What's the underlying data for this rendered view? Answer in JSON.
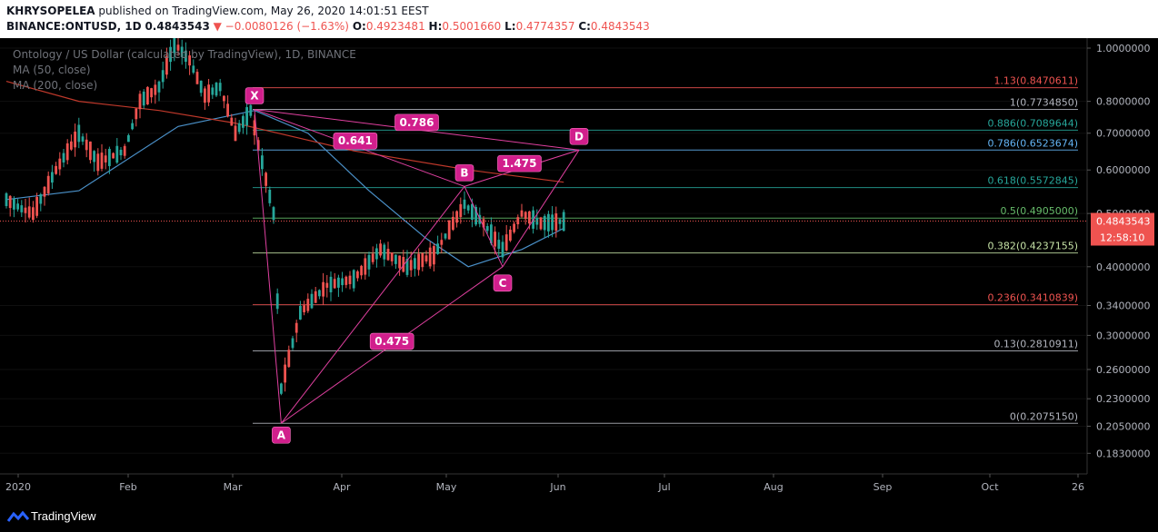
{
  "header": {
    "author": "KHRYSOPELEA",
    "published_text": "published on TradingView.com, May 26, 2020 14:01:51 EEST",
    "symbol": "BINANCE:ONTUSD, 1D",
    "last": "0.4843543",
    "change": "▼ −0.0080126 (−1.63%)",
    "o_label": "O:",
    "o_val": "0.4923481",
    "h_label": "H:",
    "h_val": "0.5001660",
    "l_label": "L:",
    "l_val": "0.4774357",
    "c_label": "C:",
    "c_val": "0.4843543"
  },
  "legend": {
    "title": "Ontology / US Dollar (calculated by TradingView), 1D, BINANCE",
    "ma50": "MA (50, close)",
    "ma200": "MA (200, close)"
  },
  "footer": {
    "brand": "TradingView"
  },
  "chart_data": {
    "type": "candlestick",
    "price_axis": {
      "scale": "log",
      "ticks": [
        "1.0000000",
        "0.8000000",
        "0.7000000",
        "0.6000000",
        "0.5000000",
        "0.4000000",
        "0.3400000",
        "0.3000000",
        "0.2600000",
        "0.2300000",
        "0.2050000",
        "0.1830000"
      ],
      "last_price_label": "0.4843543",
      "countdown_label": "12:58:10",
      "last_price": 0.4843543
    },
    "time_axis": {
      "labels": [
        "2020",
        "Feb",
        "Mar",
        "Apr",
        "May",
        "Jun",
        "Jul",
        "Aug",
        "Sep",
        "Oct",
        "26"
      ]
    },
    "fibonacci": [
      {
        "label": "1.13(0.8470611)",
        "price": 0.8470611,
        "color": "#ef5350"
      },
      {
        "label": "1(0.7734850)",
        "price": 0.773485,
        "color": "#b2b5be"
      },
      {
        "label": "0.886(0.7089644)",
        "price": 0.7089644,
        "color": "#26a69a"
      },
      {
        "label": "0.786(0.6523674)",
        "price": 0.6523674,
        "color": "#64b5f6"
      },
      {
        "label": "0.618(0.5572845)",
        "price": 0.5572845,
        "color": "#26a69a"
      },
      {
        "label": "0.5(0.4905000)",
        "price": 0.4905,
        "color": "#66bb6a"
      },
      {
        "label": "0.382(0.4237155)",
        "price": 0.4237155,
        "color": "#c5e1a5"
      },
      {
        "label": "0.236(0.3410839)",
        "price": 0.3410839,
        "color": "#ef5350"
      },
      {
        "label": "0.13(0.2810911)",
        "price": 0.2810911,
        "color": "#b2b5be"
      },
      {
        "label": "0(0.2075150)",
        "price": 0.207515,
        "color": "#b2b5be"
      }
    ],
    "harmonic_points": [
      {
        "label": "X",
        "date": "2020-03-06",
        "price": 0.773485
      },
      {
        "label": "A",
        "date": "2020-03-13",
        "price": 0.207515
      },
      {
        "label": "B",
        "date": "2020-04-30",
        "price": 0.56
      },
      {
        "label": "C",
        "date": "2020-05-10",
        "price": 0.4
      },
      {
        "label": "D",
        "date": "2020-05-30",
        "price": 0.6523674
      }
    ],
    "ratios": [
      "0.786",
      "0.641",
      "1.475",
      "0.475"
    ],
    "moving_averages": [
      {
        "name": "MA (50, close)",
        "color": "#4a90c8",
        "points": [
          [
            "2020-01-01",
            0.53
          ],
          [
            "2020-01-20",
            0.55
          ],
          [
            "2020-02-15",
            0.72
          ],
          [
            "2020-03-06",
            0.77
          ],
          [
            "2020-03-20",
            0.7
          ],
          [
            "2020-04-05",
            0.55
          ],
          [
            "2020-04-20",
            0.45
          ],
          [
            "2020-05-01",
            0.4
          ],
          [
            "2020-05-15",
            0.43
          ],
          [
            "2020-05-26",
            0.47
          ]
        ]
      },
      {
        "name": "MA (200, close)",
        "color": "#c0392b",
        "points": [
          [
            "2020-01-01",
            0.87
          ],
          [
            "2020-01-20",
            0.8
          ],
          [
            "2020-02-10",
            0.77
          ],
          [
            "2020-03-01",
            0.73
          ],
          [
            "2020-04-01",
            0.65
          ],
          [
            "2020-05-01",
            0.6
          ],
          [
            "2020-05-26",
            0.57
          ]
        ]
      }
    ],
    "candle_count": 147,
    "candle_path": [
      [
        "2020-01-01",
        0.53
      ],
      [
        "2020-01-05",
        0.51
      ],
      [
        "2020-01-08",
        0.5
      ],
      [
        "2020-01-14",
        0.6
      ],
      [
        "2020-01-20",
        0.7
      ],
      [
        "2020-01-25",
        0.62
      ],
      [
        "2020-02-01",
        0.65
      ],
      [
        "2020-02-05",
        0.8
      ],
      [
        "2020-02-10",
        0.85
      ],
      [
        "2020-02-14",
        1.02
      ],
      [
        "2020-02-18",
        0.95
      ],
      [
        "2020-02-22",
        0.82
      ],
      [
        "2020-02-26",
        0.85
      ],
      [
        "2020-03-01",
        0.7
      ],
      [
        "2020-03-05",
        0.77
      ],
      [
        "2020-03-08",
        0.62
      ],
      [
        "2020-03-11",
        0.5
      ],
      [
        "2020-03-13",
        0.24
      ],
      [
        "2020-03-18",
        0.33
      ],
      [
        "2020-03-25",
        0.37
      ],
      [
        "2020-04-01",
        0.38
      ],
      [
        "2020-04-08",
        0.43
      ],
      [
        "2020-04-15",
        0.4
      ],
      [
        "2020-04-22",
        0.42
      ],
      [
        "2020-04-30",
        0.52
      ],
      [
        "2020-05-05",
        0.48
      ],
      [
        "2020-05-10",
        0.43
      ],
      [
        "2020-05-15",
        0.5
      ],
      [
        "2020-05-20",
        0.48
      ],
      [
        "2020-05-26",
        0.484
      ]
    ]
  }
}
